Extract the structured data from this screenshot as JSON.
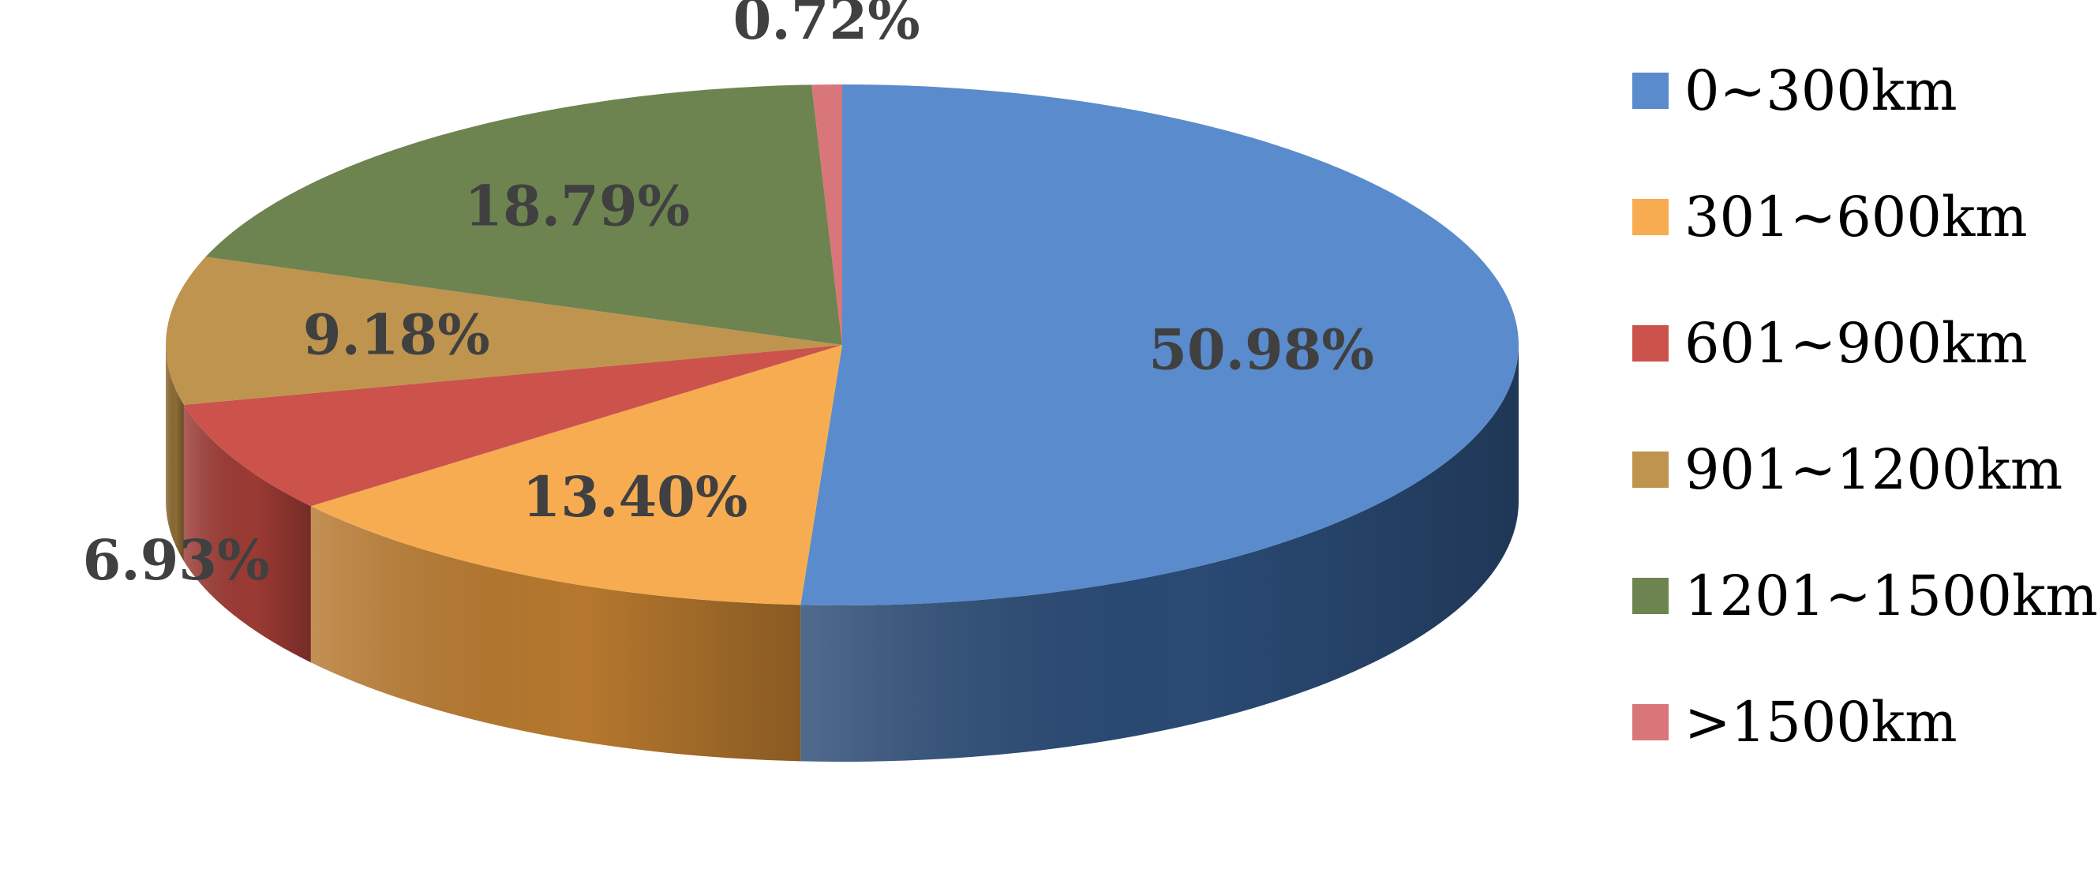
{
  "chart_data": {
    "type": "pie",
    "style": "3d",
    "title": "",
    "legend_position": "right",
    "slices": [
      {
        "label": "0~300km",
        "value": 50.98,
        "value_label": "50.98%",
        "color": "#5a8bcc",
        "side_color": "#2a4a74"
      },
      {
        "label": "301~600km",
        "value": 13.4,
        "value_label": "13.40%",
        "color": "#f7ac52",
        "side_color": "#b6782e"
      },
      {
        "label": "601~900km",
        "value": 6.93,
        "value_label": "6.93%",
        "color": "#cc534b",
        "side_color": "#9c3a34"
      },
      {
        "label": "901~1200km",
        "value": 9.18,
        "value_label": "9.18%",
        "color": "#bf944f",
        "side_color": "#8c6a35"
      },
      {
        "label": "1201~1500km",
        "value": 18.79,
        "value_label": "18.79%",
        "color": "#6e8450",
        "side_color": "#4c5c36"
      },
      {
        "label": ">1500km",
        "value": 0.72,
        "value_label": "0.72%",
        "color": "#d9767a",
        "side_color": "#a05054"
      }
    ]
  }
}
